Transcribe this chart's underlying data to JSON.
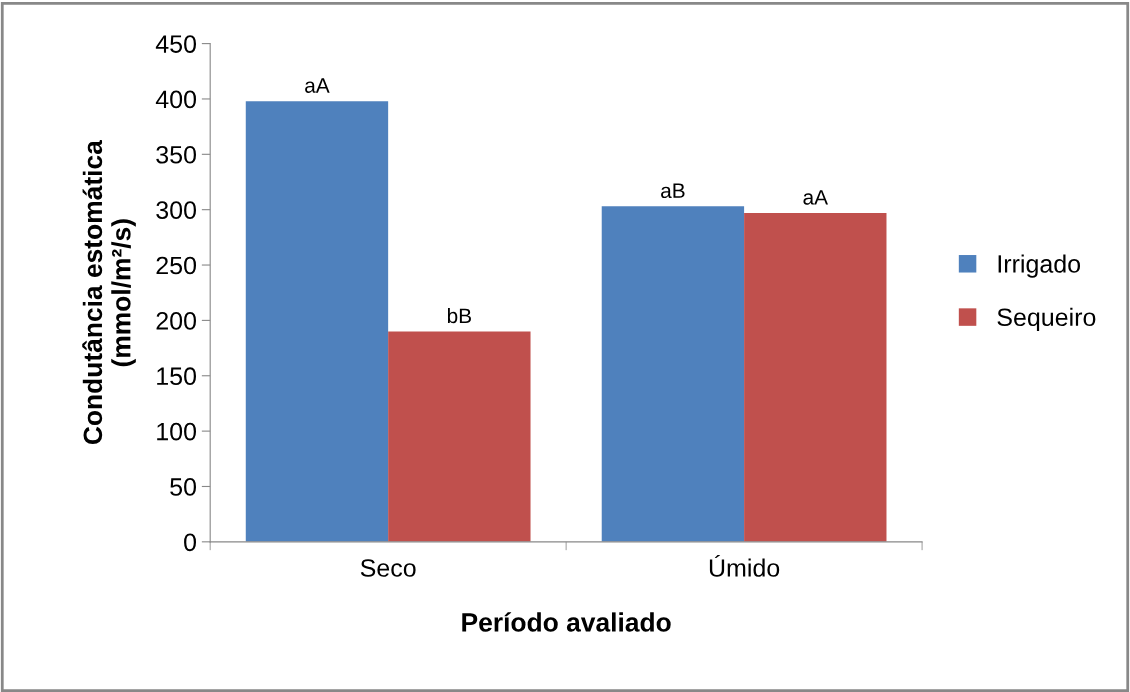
{
  "chart_data": {
    "type": "bar",
    "xlabel": "Período avaliado",
    "ylabel": "Condutância estomática\n(mmol/m²/s)",
    "categories": [
      "Seco",
      "Úmido"
    ],
    "series": [
      {
        "name": "Irrigado",
        "color": "#4f81bd",
        "values": [
          398,
          303
        ],
        "value_labels": [
          "aA",
          "aB"
        ]
      },
      {
        "name": "Sequeiro",
        "color": "#c0504d",
        "values": [
          190,
          297
        ],
        "value_labels": [
          "bB",
          "aA"
        ]
      }
    ],
    "ylim": [
      0,
      450
    ],
    "yticks": [
      0,
      50,
      100,
      150,
      200,
      250,
      300,
      350,
      400,
      450
    ],
    "grid": false,
    "legend": "right"
  }
}
